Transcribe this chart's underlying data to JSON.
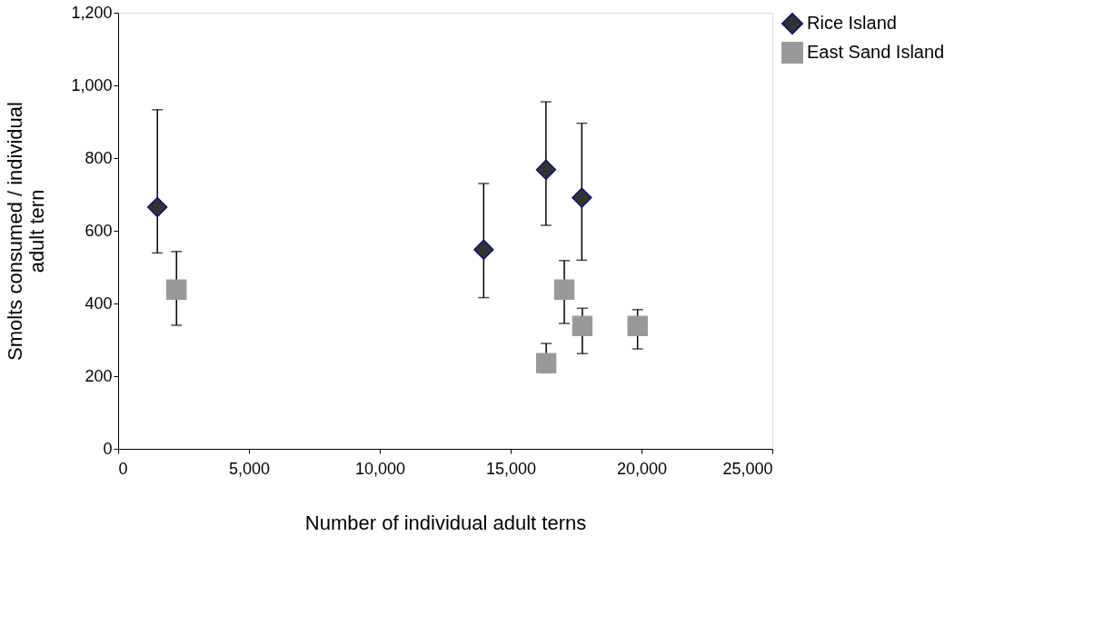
{
  "chart_data": {
    "type": "scatter",
    "xlabel": "Number of individual adult terns",
    "ylabel": "Smolts consumed / individual\nadult tern",
    "xlim": [
      0,
      25000
    ],
    "xticks": [
      0,
      {
        "value": 5000,
        "label": "5,000"
      },
      {
        "value": 10000,
        "label": "10,000"
      },
      {
        "value": 15000,
        "label": "15,000"
      },
      {
        "value": 20000,
        "label": "20,000"
      },
      {
        "value": 25000,
        "label": "25,000"
      }
    ],
    "ylim": [
      0,
      1200
    ],
    "yticks": [
      0,
      200,
      400,
      600,
      800,
      {
        "value": 1000,
        "label": "1,000"
      },
      {
        "value": 1200,
        "label": "1,200"
      }
    ],
    "grid": false,
    "legend": "right",
    "series": [
      {
        "name": "Rice Island",
        "color": "#333333",
        "marker": "diamond",
        "x": [
          1500,
          13970,
          16350,
          17720
        ],
        "values": [
          665,
          548,
          768,
          691
        ],
        "errors": [
          [
            539,
            933
          ],
          [
            416,
            730
          ],
          [
            615,
            955
          ],
          [
            519,
            896
          ]
        ]
      },
      {
        "name": "East Sand Island",
        "color": "#999999",
        "marker": "square",
        "x": [
          2230,
          17050,
          16360,
          17740,
          19850
        ],
        "values": [
          438,
          438,
          236,
          338,
          338
        ],
        "errors": [
          [
            340,
            543
          ],
          [
            345,
            518
          ],
          [
            210,
            290
          ],
          [
            262,
            387
          ],
          [
            275,
            383
          ]
        ]
      }
    ]
  }
}
